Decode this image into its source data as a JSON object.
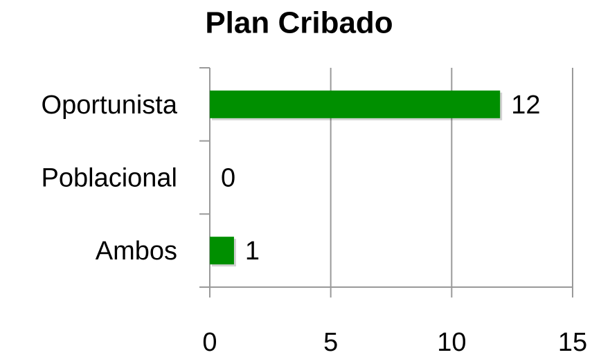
{
  "chart_data": {
    "type": "bar",
    "orientation": "horizontal",
    "title": "Plan Cribado",
    "categories": [
      "Oportunista",
      "Poblacional",
      "Ambos"
    ],
    "values": [
      12,
      0,
      1
    ],
    "color": "#008f00",
    "xlim": [
      0,
      15
    ],
    "xticks": [
      0,
      5,
      10,
      15
    ],
    "grid": true
  }
}
